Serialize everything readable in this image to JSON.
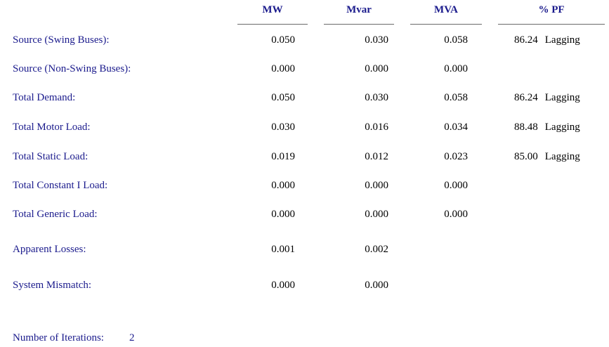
{
  "headers": {
    "mw": "MW",
    "mvar": "Mvar",
    "mva": "MVA",
    "pf": "% PF"
  },
  "rows": [
    {
      "label": "Source (Swing Buses):",
      "mw": "0.050",
      "mvar": "0.030",
      "mva": "0.058",
      "pf": "86.24",
      "pf_dir": "Lagging"
    },
    {
      "label": "Source (Non-Swing Buses):",
      "mw": "0.000",
      "mvar": "0.000",
      "mva": "0.000",
      "pf": "",
      "pf_dir": ""
    },
    {
      "label": "Total Demand:",
      "mw": "0.050",
      "mvar": "0.030",
      "mva": "0.058",
      "pf": "86.24",
      "pf_dir": "Lagging"
    },
    {
      "label": "Total Motor Load:",
      "mw": "0.030",
      "mvar": "0.016",
      "mva": "0.034",
      "pf": "88.48",
      "pf_dir": "Lagging"
    },
    {
      "label": "Total Static Load:",
      "mw": "0.019",
      "mvar": "0.012",
      "mva": "0.023",
      "pf": "85.00",
      "pf_dir": "Lagging"
    },
    {
      "label": "Total Constant I Load:",
      "mw": "0.000",
      "mvar": "0.000",
      "mva": "0.000",
      "pf": "",
      "pf_dir": ""
    },
    {
      "label": "Total Generic Load:",
      "mw": "0.000",
      "mvar": "0.000",
      "mva": "0.000",
      "pf": "",
      "pf_dir": ""
    },
    {
      "label": "Apparent Losses:",
      "mw": "0.001",
      "mvar": "0.002",
      "mva": "",
      "pf": "",
      "pf_dir": ""
    },
    {
      "label": "System Mismatch:",
      "mw": "0.000",
      "mvar": "0.000",
      "mva": "",
      "pf": "",
      "pf_dir": ""
    }
  ],
  "iterations": {
    "label": "Number of Iterations:",
    "value": "2"
  },
  "colors": {
    "label_text": "#1a1a8c",
    "value_text": "#000000",
    "rule": "#6b6b6b"
  }
}
